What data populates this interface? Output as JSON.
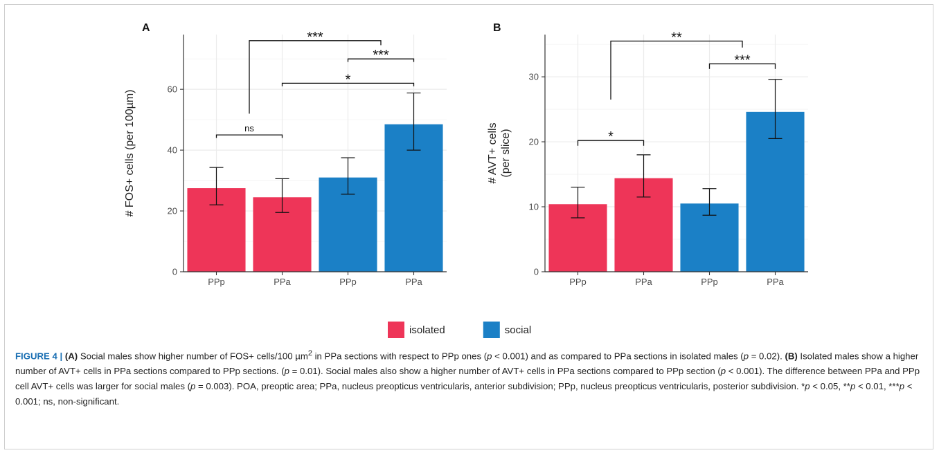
{
  "chart_data": [
    {
      "type": "bar",
      "panel_label": "A",
      "ylabel": "# FOS+ cells (per 100µm)",
      "ylim": [
        0,
        78
      ],
      "yticks": [
        0,
        20,
        40,
        60
      ],
      "categories": [
        "PPp",
        "PPa",
        "PPp",
        "PPa"
      ],
      "groups": [
        "isolated",
        "isolated",
        "social",
        "social"
      ],
      "values": [
        27.5,
        24.5,
        31.0,
        48.5
      ],
      "error_low": [
        22.0,
        19.5,
        25.5,
        40.0
      ],
      "error_high": [
        34.3,
        30.6,
        37.5,
        58.8
      ],
      "brackets": [
        {
          "from": 0,
          "to": 1,
          "label": "ns",
          "y": 45,
          "tick_y": 44
        },
        {
          "from": 1,
          "to": 3,
          "label": "*",
          "y": 62,
          "tick_y": 61
        },
        {
          "from": 2,
          "to": 3,
          "label": "***",
          "y": 70,
          "tick_y": 69
        },
        {
          "from": 0.5,
          "to": 2.5,
          "label": "***",
          "y": 76,
          "tick_y_left": 52,
          "tick_y_right": 74.5
        }
      ],
      "grid": true
    },
    {
      "type": "bar",
      "panel_label": "B",
      "ylabel": "# AVT+ cells\n(per slice)",
      "ylim": [
        0,
        36.5
      ],
      "yticks": [
        0,
        10,
        20,
        30
      ],
      "categories": [
        "PPp",
        "PPa",
        "PPp",
        "PPa"
      ],
      "groups": [
        "isolated",
        "isolated",
        "social",
        "social"
      ],
      "values": [
        10.4,
        14.4,
        10.5,
        24.6
      ],
      "error_low": [
        8.3,
        11.5,
        8.7,
        20.5
      ],
      "error_high": [
        13.0,
        18.0,
        12.8,
        29.6
      ],
      "brackets": [
        {
          "from": 0,
          "to": 1,
          "label": "*",
          "y": 20.2,
          "tick_y": 19.4
        },
        {
          "from": 2,
          "to": 3,
          "label": "***",
          "y": 32.0,
          "tick_y": 31.2
        },
        {
          "from": 0.5,
          "to": 2.5,
          "label": "**",
          "y": 35.5,
          "tick_y_left": 26.5,
          "tick_y_right": 34.5
        }
      ],
      "grid": true
    }
  ],
  "legend": {
    "placement": "bottom",
    "items": [
      {
        "label": "isolated",
        "color": "#ee3558"
      },
      {
        "label": "social",
        "color": "#1b80c6"
      }
    ]
  },
  "colors": {
    "isolated": "#ee3558",
    "social": "#1b80c6",
    "grid": "#ebebeb",
    "axis": "#333333"
  },
  "caption": {
    "fig_label": "FIGURE 4 | ",
    "a_label": "(A)",
    "a_text_1": " Social males show higher number of FOS+ cells/100 µm",
    "a_sup": "2",
    "a_text_2": " in PPa sections with respect to PPp ones (",
    "p": "p",
    "a_text_3": " < 0.001) and as compared to PPa sections in isolated males (",
    "a_text_4": " = 0.02). ",
    "b_label": "(B)",
    "b_text_1": " Isolated males show a higher number of AVT+ cells in PPa sections compared to PPp sections. (",
    "b_text_2": " = 0.01). Social males also show a higher number of AVT+ cells in PPa sections compared to PPp section (",
    "b_text_3": " < 0.001). The difference between PPa and PPp cell AVT+ cells was larger for social males (",
    "b_text_4": " = 0.003). POA, preoptic area; PPa, nucleus preopticus ventricularis, anterior subdivision; PPp, nucleus preopticus ventricularis, posterior subdivision. *",
    "b_text_5": " < 0.05, **",
    "b_text_6": " < 0.01, ***",
    "b_text_7": " < 0.001; ns, non-significant."
  }
}
